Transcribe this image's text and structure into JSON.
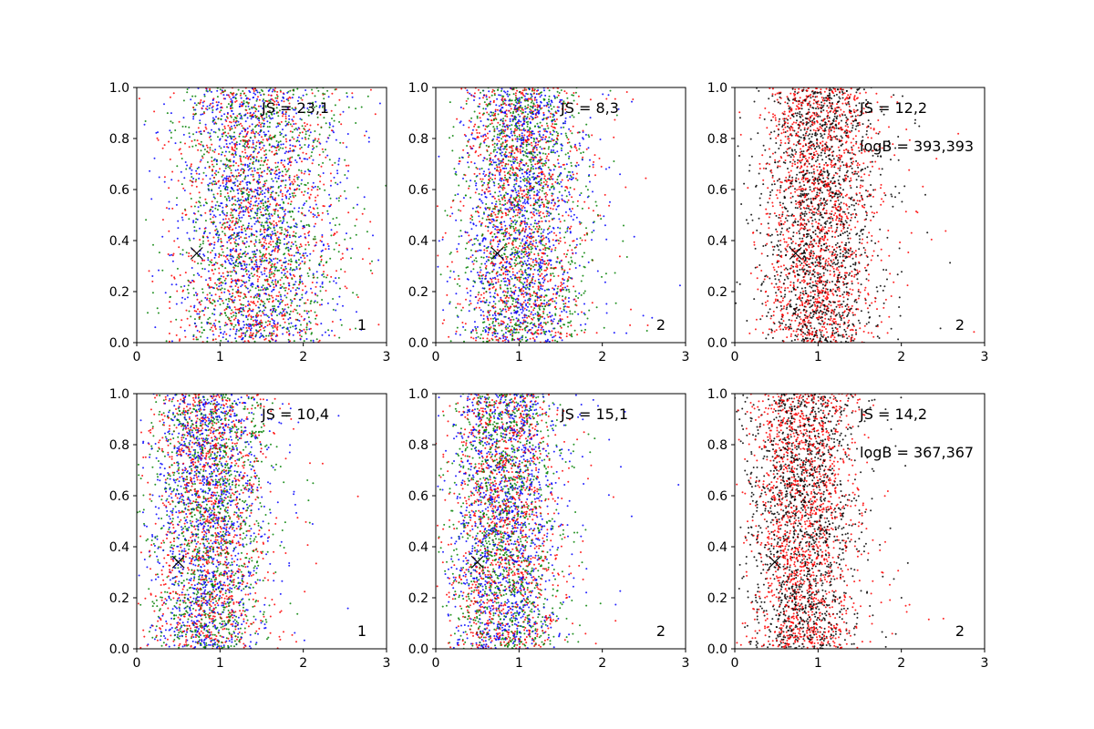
{
  "chart_data": [
    {
      "type": "scatter",
      "panel": "1",
      "annotations": [
        "JS = 23,1"
      ],
      "marker": {
        "x": 0.72,
        "y": 0.35,
        "symbol": "x"
      },
      "colors": [
        "#0000ff",
        "#ff0000",
        "#008000"
      ],
      "distribution": {
        "center_x": 1.4,
        "spread_x": 0.48,
        "count_per_color": 1150
      },
      "xlim": [
        0,
        3
      ],
      "ylim": [
        0,
        1.0
      ],
      "xticks": [
        "0",
        "1",
        "2",
        "3"
      ],
      "yticks": [
        "0.0",
        "0.2",
        "0.4",
        "0.6",
        "0.8",
        "1.0"
      ]
    },
    {
      "type": "scatter",
      "panel": "2",
      "annotations": [
        "JS = 8,3"
      ],
      "marker": {
        "x": 0.74,
        "y": 0.35,
        "symbol": "x"
      },
      "colors": [
        "#0000ff",
        "#ff0000",
        "#008000"
      ],
      "distribution": {
        "center_x": 1.0,
        "spread_x": 0.36,
        "count_per_color": 1150
      },
      "xlim": [
        0,
        3
      ],
      "ylim": [
        0,
        1.0
      ],
      "xticks": [
        "0",
        "1",
        "2",
        "3"
      ],
      "yticks": [
        "0.0",
        "0.2",
        "0.4",
        "0.6",
        "0.8",
        "1.0"
      ]
    },
    {
      "type": "scatter",
      "panel": "2",
      "annotations": [
        "JS = 12,2",
        "logB = 393,393"
      ],
      "marker": {
        "x": 0.73,
        "y": 0.35,
        "symbol": "x"
      },
      "colors": [
        "#ff0000",
        "#000000"
      ],
      "distribution": {
        "center_x": 1.0,
        "spread_x": 0.34,
        "count_per_color": 1500
      },
      "xlim": [
        0,
        3
      ],
      "ylim": [
        0,
        1.0
      ],
      "xticks": [
        "0",
        "1",
        "2",
        "3"
      ],
      "yticks": [
        "0.0",
        "0.2",
        "0.4",
        "0.6",
        "0.8",
        "1.0"
      ]
    },
    {
      "type": "scatter",
      "panel": "1",
      "annotations": [
        "JS = 10,4"
      ],
      "marker": {
        "x": 0.5,
        "y": 0.34,
        "symbol": "x"
      },
      "colors": [
        "#0000ff",
        "#ff0000",
        "#008000"
      ],
      "distribution": {
        "center_x": 0.85,
        "spread_x": 0.34,
        "count_per_color": 1150
      },
      "xlim": [
        0,
        3
      ],
      "ylim": [
        0,
        1.0
      ],
      "xticks": [
        "0",
        "1",
        "2",
        "3"
      ],
      "yticks": [
        "0.0",
        "0.2",
        "0.4",
        "0.6",
        "0.8",
        "1.0"
      ]
    },
    {
      "type": "scatter",
      "panel": "2",
      "annotations": [
        "JS = 15,1"
      ],
      "marker": {
        "x": 0.5,
        "y": 0.34,
        "symbol": "x"
      },
      "colors": [
        "#0000ff",
        "#ff0000",
        "#008000"
      ],
      "distribution": {
        "center_x": 0.8,
        "spread_x": 0.33,
        "count_per_color": 1150
      },
      "xlim": [
        0,
        3
      ],
      "ylim": [
        0,
        1.0
      ],
      "xticks": [
        "0",
        "1",
        "2",
        "3"
      ],
      "yticks": [
        "0.0",
        "0.2",
        "0.4",
        "0.6",
        "0.8",
        "1.0"
      ]
    },
    {
      "type": "scatter",
      "panel": "2",
      "annotations": [
        "JS = 14,2",
        "logB = 367,367"
      ],
      "marker": {
        "x": 0.48,
        "y": 0.34,
        "symbol": "x"
      },
      "colors": [
        "#ff0000",
        "#000000"
      ],
      "distribution": {
        "center_x": 0.8,
        "spread_x": 0.33,
        "count_per_color": 1500
      },
      "xlim": [
        0,
        3
      ],
      "ylim": [
        0,
        1.0
      ],
      "xticks": [
        "0",
        "1",
        "2",
        "3"
      ],
      "yticks": [
        "0.0",
        "0.2",
        "0.4",
        "0.6",
        "0.8",
        "1.0"
      ]
    }
  ]
}
